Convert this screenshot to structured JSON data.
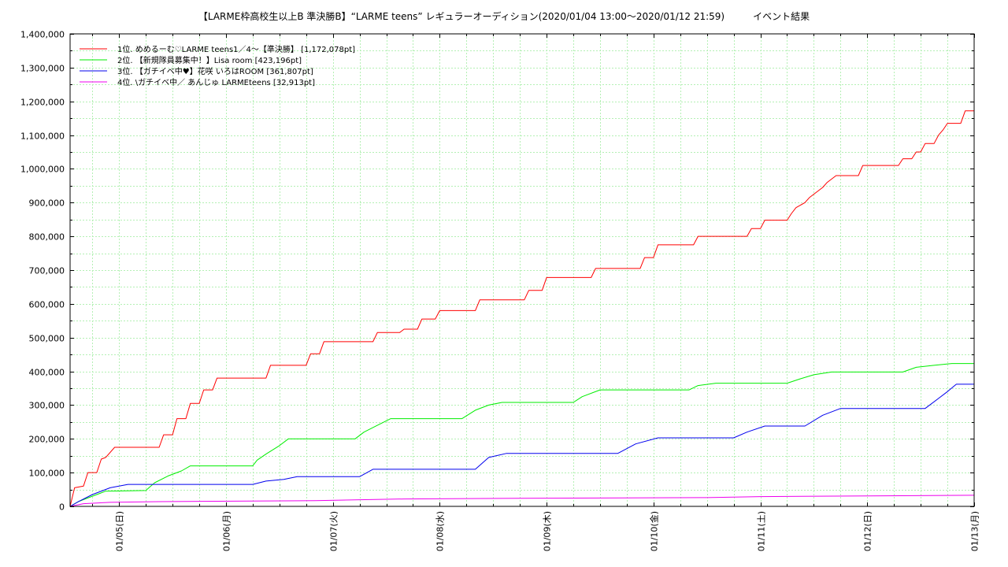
{
  "chart_data": {
    "type": "line",
    "title": "【LARME枠高校生以上B 準決勝B】“LARME teens” レギュラーオーディション(2020/01/04 13:00〜2020/01/12 21:59)　　　イベント結果",
    "xlabel": "",
    "ylabel": "",
    "x_axis": {
      "start": "2020-01-04 13:00",
      "end": "2020-01-13 00:00",
      "tick_labels": [
        "01/05(日)",
        "01/06(月)",
        "01/07(火)",
        "01/08(水)",
        "01/09(木)",
        "01/10(金)",
        "01/11(土)",
        "01/12(日)",
        "01/13(月)"
      ]
    },
    "y_axis": {
      "ylim": [
        0,
        1400000
      ],
      "tick_labels": [
        "0",
        "100,000",
        "200,000",
        "300,000",
        "400,000",
        "500,000",
        "600,000",
        "700,000",
        "800,000",
        "900,000",
        "1,000,000",
        "1,100,000",
        "1,200,000",
        "1,300,000",
        "1,400,000"
      ]
    },
    "grid": true,
    "legend_position": "top-left",
    "series": [
      {
        "name": "1位. めめるーむ♡LARME teens1／4〜【準決勝】 [1,172,078pt]",
        "color": "#ff0000",
        "points": [
          [
            "2020-01-04 13:00",
            0
          ],
          [
            "2020-01-04 14:00",
            55000
          ],
          [
            "2020-01-04 16:00",
            60000
          ],
          [
            "2020-01-04 17:00",
            100000
          ],
          [
            "2020-01-04 19:00",
            100000
          ],
          [
            "2020-01-04 20:00",
            140000
          ],
          [
            "2020-01-04 21:00",
            145000
          ],
          [
            "2020-01-04 23:00",
            175000
          ],
          [
            "2020-01-05 09:00",
            175000
          ],
          [
            "2020-01-05 10:00",
            212000
          ],
          [
            "2020-01-05 12:00",
            212000
          ],
          [
            "2020-01-05 13:00",
            260000
          ],
          [
            "2020-01-05 15:00",
            260000
          ],
          [
            "2020-01-05 16:00",
            305000
          ],
          [
            "2020-01-05 18:00",
            305000
          ],
          [
            "2020-01-05 19:00",
            345000
          ],
          [
            "2020-01-05 21:00",
            345000
          ],
          [
            "2020-01-05 22:00",
            380000
          ],
          [
            "2020-01-06 09:00",
            380000
          ],
          [
            "2020-01-06 10:00",
            418000
          ],
          [
            "2020-01-06 18:00",
            418000
          ],
          [
            "2020-01-06 19:00",
            452000
          ],
          [
            "2020-01-06 21:00",
            452000
          ],
          [
            "2020-01-06 22:00",
            488000
          ],
          [
            "2020-01-07 09:00",
            488000
          ],
          [
            "2020-01-07 10:00",
            515000
          ],
          [
            "2020-01-07 15:00",
            515000
          ],
          [
            "2020-01-07 16:00",
            525000
          ],
          [
            "2020-01-07 19:00",
            525000
          ],
          [
            "2020-01-07 20:00",
            555000
          ],
          [
            "2020-01-07 23:00",
            555000
          ],
          [
            "2020-01-08 00:00",
            580000
          ],
          [
            "2020-01-08 08:00",
            580000
          ],
          [
            "2020-01-08 09:00",
            612000
          ],
          [
            "2020-01-08 19:00",
            612000
          ],
          [
            "2020-01-08 20:00",
            640000
          ],
          [
            "2020-01-08 23:00",
            640000
          ],
          [
            "2020-01-09 00:00",
            678000
          ],
          [
            "2020-01-09 10:00",
            678000
          ],
          [
            "2020-01-09 11:00",
            705000
          ],
          [
            "2020-01-09 21:00",
            705000
          ],
          [
            "2020-01-09 22:00",
            737000
          ],
          [
            "2020-01-10 00:00",
            737000
          ],
          [
            "2020-01-10 01:00",
            775000
          ],
          [
            "2020-01-10 09:00",
            775000
          ],
          [
            "2020-01-10 10:00",
            800000
          ],
          [
            "2020-01-10 21:00",
            800000
          ],
          [
            "2020-01-10 22:00",
            823000
          ],
          [
            "2020-01-11 00:00",
            823000
          ],
          [
            "2020-01-11 01:00",
            848000
          ],
          [
            "2020-01-11 06:00",
            848000
          ],
          [
            "2020-01-11 07:00",
            868000
          ],
          [
            "2020-01-11 08:00",
            885000
          ],
          [
            "2020-01-11 10:00",
            900000
          ],
          [
            "2020-01-11 11:00",
            915000
          ],
          [
            "2020-01-11 12:00",
            925000
          ],
          [
            "2020-01-11 14:00",
            945000
          ],
          [
            "2020-01-11 15:00",
            960000
          ],
          [
            "2020-01-11 17:00",
            980000
          ],
          [
            "2020-01-11 22:00",
            980000
          ],
          [
            "2020-01-11 23:00",
            1010000
          ],
          [
            "2020-01-12 07:00",
            1010000
          ],
          [
            "2020-01-12 08:00",
            1030000
          ],
          [
            "2020-01-12 10:00",
            1030000
          ],
          [
            "2020-01-12 11:00",
            1050000
          ],
          [
            "2020-01-12 12:00",
            1050000
          ],
          [
            "2020-01-12 13:00",
            1075000
          ],
          [
            "2020-01-12 15:00",
            1075000
          ],
          [
            "2020-01-12 16:00",
            1100000
          ],
          [
            "2020-01-12 17:00",
            1115000
          ],
          [
            "2020-01-12 18:00",
            1135000
          ],
          [
            "2020-01-12 21:00",
            1135000
          ],
          [
            "2020-01-12 22:00",
            1172078
          ],
          [
            "2020-01-13 00:00",
            1172078
          ]
        ]
      },
      {
        "name": "2位. 【新規隊員募集中！】Lisa room [423,196pt]",
        "color": "#00ee00",
        "points": [
          [
            "2020-01-04 13:00",
            0
          ],
          [
            "2020-01-04 15:00",
            15000
          ],
          [
            "2020-01-04 18:00",
            30000
          ],
          [
            "2020-01-04 21:00",
            45000
          ],
          [
            "2020-01-05 06:00",
            47000
          ],
          [
            "2020-01-05 08:00",
            70000
          ],
          [
            "2020-01-05 11:00",
            90000
          ],
          [
            "2020-01-05 14:00",
            105000
          ],
          [
            "2020-01-05 16:00",
            120000
          ],
          [
            "2020-01-06 06:00",
            120000
          ],
          [
            "2020-01-06 07:00",
            137000
          ],
          [
            "2020-01-06 09:00",
            155000
          ],
          [
            "2020-01-06 12:00",
            180000
          ],
          [
            "2020-01-06 14:00",
            200000
          ],
          [
            "2020-01-07 05:00",
            200000
          ],
          [
            "2020-01-07 07:00",
            220000
          ],
          [
            "2020-01-07 10:00",
            240000
          ],
          [
            "2020-01-07 13:00",
            260000
          ],
          [
            "2020-01-08 05:00",
            260000
          ],
          [
            "2020-01-08 08:00",
            285000
          ],
          [
            "2020-01-08 11:00",
            300000
          ],
          [
            "2020-01-08 14:00",
            308000
          ],
          [
            "2020-01-09 06:00",
            308000
          ],
          [
            "2020-01-09 08:00",
            325000
          ],
          [
            "2020-01-09 12:00",
            345000
          ],
          [
            "2020-01-10 08:00",
            345000
          ],
          [
            "2020-01-10 10:00",
            358000
          ],
          [
            "2020-01-10 14:00",
            365000
          ],
          [
            "2020-01-11 06:00",
            365000
          ],
          [
            "2020-01-11 09:00",
            378000
          ],
          [
            "2020-01-11 12:00",
            390000
          ],
          [
            "2020-01-11 16:00",
            398000
          ],
          [
            "2020-01-12 08:00",
            398000
          ],
          [
            "2020-01-12 11:00",
            412000
          ],
          [
            "2020-01-12 15:00",
            418000
          ],
          [
            "2020-01-12 19:00",
            423196
          ],
          [
            "2020-01-13 00:00",
            423196
          ]
        ]
      },
      {
        "name": "3位. 【ガチイベ中♥】花咲 いろはROOM [361,807pt]",
        "color": "#0000ee",
        "points": [
          [
            "2020-01-04 13:00",
            0
          ],
          [
            "2020-01-04 15:00",
            15000
          ],
          [
            "2020-01-04 18:00",
            35000
          ],
          [
            "2020-01-04 22:00",
            55000
          ],
          [
            "2020-01-05 02:00",
            65000
          ],
          [
            "2020-01-06 06:00",
            65000
          ],
          [
            "2020-01-06 09:00",
            75000
          ],
          [
            "2020-01-06 13:00",
            80000
          ],
          [
            "2020-01-06 16:00",
            88000
          ],
          [
            "2020-01-07 06:00",
            88000
          ],
          [
            "2020-01-07 09:00",
            110000
          ],
          [
            "2020-01-08 08:00",
            110000
          ],
          [
            "2020-01-08 11:00",
            145000
          ],
          [
            "2020-01-08 15:00",
            157000
          ],
          [
            "2020-01-09 16:00",
            157000
          ],
          [
            "2020-01-09 20:00",
            185000
          ],
          [
            "2020-01-10 01:00",
            203000
          ],
          [
            "2020-01-10 18:00",
            203000
          ],
          [
            "2020-01-10 21:00",
            220000
          ],
          [
            "2020-01-11 01:00",
            238000
          ],
          [
            "2020-01-11 10:00",
            238000
          ],
          [
            "2020-01-11 14:00",
            270000
          ],
          [
            "2020-01-11 18:00",
            290000
          ],
          [
            "2020-01-12 13:00",
            290000
          ],
          [
            "2020-01-12 16:00",
            320000
          ],
          [
            "2020-01-12 18:00",
            340000
          ],
          [
            "2020-01-12 20:00",
            361807
          ],
          [
            "2020-01-13 00:00",
            361807
          ]
        ]
      },
      {
        "name": "4位. \\ガチイベ中／ あんじゅ LARMEteens [32,913pt]",
        "color": "#ee00ee",
        "points": [
          [
            "2020-01-04 13:00",
            0
          ],
          [
            "2020-01-04 16:00",
            8000
          ],
          [
            "2020-01-04 22:00",
            12000
          ],
          [
            "2020-01-05 09:00",
            14000
          ],
          [
            "2020-01-06 20:00",
            17000
          ],
          [
            "2020-01-07 16:00",
            22000
          ],
          [
            "2020-01-08 18:00",
            24000
          ],
          [
            "2020-01-10 12:00",
            26000
          ],
          [
            "2020-01-11 00:00",
            29000
          ],
          [
            "2020-01-12 00:00",
            31000
          ],
          [
            "2020-01-13 00:00",
            32913
          ]
        ]
      }
    ]
  }
}
